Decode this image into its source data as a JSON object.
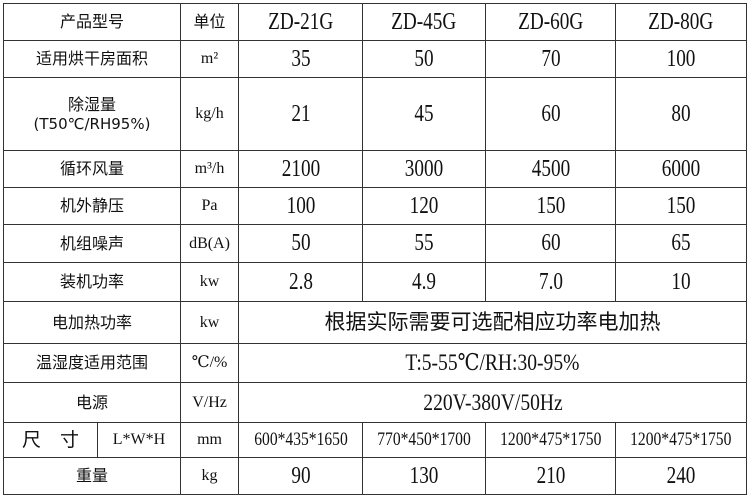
{
  "header": {
    "label": "产品型号",
    "unit": "单位",
    "models": [
      "ZD-21G",
      "ZD-45G",
      "ZD-60G",
      "ZD-80G"
    ]
  },
  "rows": [
    {
      "label": "适用烘干房面积",
      "unit": "m²",
      "values": [
        "35",
        "50",
        "70",
        "100"
      ]
    },
    {
      "label": "除湿量",
      "sublabel": "(T50℃/RH95%)",
      "unit": "kg/h",
      "values": [
        "21",
        "45",
        "60",
        "80"
      ]
    },
    {
      "label": "循环风量",
      "unit": "m³/h",
      "values": [
        "2100",
        "3000",
        "4500",
        "6000"
      ]
    },
    {
      "label": "机外静压",
      "unit": "Pa",
      "values": [
        "100",
        "120",
        "150",
        "150"
      ]
    },
    {
      "label": "机组噪声",
      "unit": "dB(A)",
      "values": [
        "50",
        "55",
        "60",
        "65"
      ]
    },
    {
      "label": "装机功率",
      "unit": "kw",
      "values": [
        "2.8",
        "4.9",
        "7.0",
        "10"
      ]
    }
  ],
  "heating": {
    "label": "电加热功率",
    "unit": "kw",
    "value": "根据实际需要可选配相应功率电加热"
  },
  "range": {
    "label": "温湿度适用范围",
    "unit": "℃/%",
    "value": "T:5-55℃/RH:30-95%"
  },
  "power": {
    "label": "电源",
    "unit": "V/Hz",
    "value": "220V-380V/50Hz"
  },
  "size": {
    "label": "尺　寸",
    "sublabel": "L*W*H",
    "unit": "mm",
    "values": [
      "600*435*1650",
      "770*450*1700",
      "1200*475*1750",
      "1200*475*1750"
    ]
  },
  "weight": {
    "label": "重量",
    "unit": "kg",
    "values": [
      "90",
      "130",
      "210",
      "240"
    ]
  }
}
